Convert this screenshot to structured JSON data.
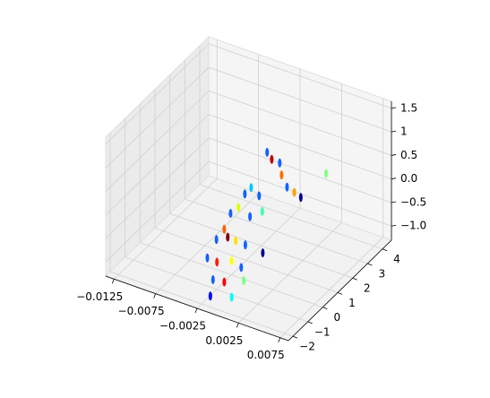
{
  "chart_data": {
    "type": "scatter3d",
    "xlim": [
      -0.0135,
      0.0085
    ],
    "ylim": [
      -2.3,
      4.6
    ],
    "zlim": [
      -1.3,
      1.65
    ],
    "xticks": [
      {
        "value": -0.0125,
        "label": "−0.0125"
      },
      {
        "value": -0.0075,
        "label": "−0.0075"
      },
      {
        "value": -0.0025,
        "label": "−0.0025"
      },
      0.0025,
      0.0075
    ],
    "yticks": [
      {
        "value": -2,
        "label": "−2"
      },
      {
        "value": -1,
        "label": "−1"
      },
      0,
      1,
      2,
      3,
      4
    ],
    "zticks": [
      {
        "value": -1.0,
        "label": "−1.0"
      },
      {
        "value": -0.5,
        "label": "−0.5"
      },
      {
        "value": 0.0,
        "label": "0.0"
      },
      0.5,
      1.0,
      1.5
    ],
    "grid": true,
    "x": [
      0.0,
      0.0002,
      0.0008,
      0.0012,
      0.0015,
      0.0022,
      0.0028,
      0.0035,
      -0.0012,
      -0.0016,
      -0.0006,
      -0.002,
      -0.0026,
      -0.0008,
      -0.0004,
      -0.003,
      -0.0034,
      -0.0024,
      -0.0018,
      -0.001,
      -0.0036,
      -0.0028,
      -0.0014,
      -0.0006,
      0.0002,
      -0.0022,
      -0.0012,
      0.0006,
      -0.0018,
      0.0004
    ],
    "y": [
      1.0,
      1.2,
      1.4,
      1.3,
      1.5,
      1.6,
      1.7,
      3.0,
      0.6,
      0.4,
      0.8,
      0.2,
      0.0,
      0.3,
      0.9,
      -0.2,
      -0.5,
      -0.3,
      -0.1,
      0.1,
      -1.0,
      -0.8,
      -0.6,
      -0.4,
      0.6,
      -1.4,
      -1.2,
      -0.9,
      -1.8,
      -1.6
    ],
    "z": [
      1.15,
      0.95,
      0.85,
      0.65,
      0.35,
      0.25,
      0.15,
      0.3,
      0.45,
      0.35,
      0.25,
      0.1,
      0.0,
      -0.05,
      -0.1,
      -0.3,
      -0.45,
      -0.4,
      -0.5,
      -0.6,
      -0.7,
      -0.8,
      -0.75,
      -0.9,
      -0.85,
      -0.95,
      -1.0,
      -0.95,
      -1.15,
      -1.1
    ],
    "colors": [
      "#1560ff",
      "#c00000",
      "#1560ff",
      "#ff7000",
      "#1560ff",
      "#ffa000",
      "#00008f",
      "#80ff80",
      "#00c8ff",
      "#1560ff",
      "#1560ff",
      "#e0ff00",
      "#1560ff",
      "#1560ff",
      "#40ffb0",
      "#ff6000",
      "#1560ff",
      "#800000",
      "#ffe000",
      "#1560ff",
      "#1560ff",
      "#ff2000",
      "#ffff00",
      "#1560ff",
      "#00008f",
      "#1560ff",
      "#ff0000",
      "#80ff80",
      "#0000ff",
      "#00ffff"
    ]
  }
}
